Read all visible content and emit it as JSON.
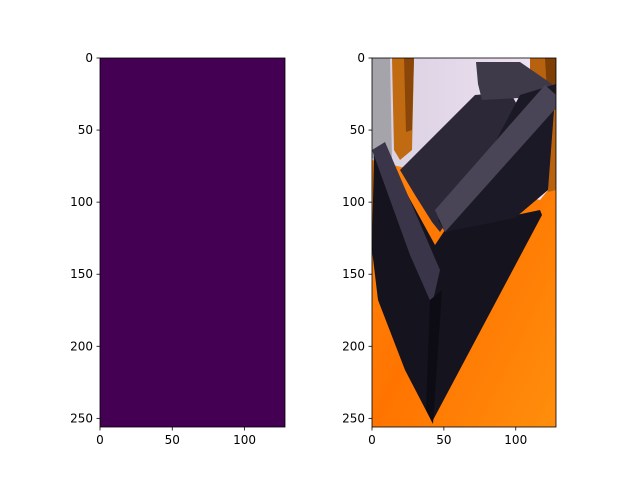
{
  "figure": {
    "background": "#ffffff"
  },
  "chart_data": [
    {
      "type": "heatmap",
      "title": "",
      "xlabel": "",
      "ylabel": "",
      "xlim": [
        0,
        128
      ],
      "ylim": [
        256,
        0
      ],
      "x_ticks": [
        0,
        50,
        100
      ],
      "y_ticks": [
        0,
        50,
        100,
        150,
        200,
        250
      ],
      "image_description_visible": "uniform solid fill",
      "colormap": "viridis",
      "fill_color": "#440154",
      "grid": false
    },
    {
      "type": "heatmap",
      "title": "",
      "xlabel": "",
      "ylabel": "",
      "xlim": [
        0,
        128
      ],
      "ylim": [
        256,
        0
      ],
      "x_ticks": [
        0,
        50,
        100
      ],
      "y_ticks": [
        0,
        50,
        100,
        150,
        200,
        250
      ],
      "colors": {
        "floor_orange": "#ff7a00",
        "floor_orange_light": "#ff9a1a",
        "sofa_dark": "#15131e",
        "sofa_mid": "#2b2738",
        "sofa_top": "#4a4556",
        "wall_light": "#e9d8ee",
        "wall_grey": "#a8a6ad",
        "wood": "#c06a12"
      },
      "grid": false
    }
  ]
}
